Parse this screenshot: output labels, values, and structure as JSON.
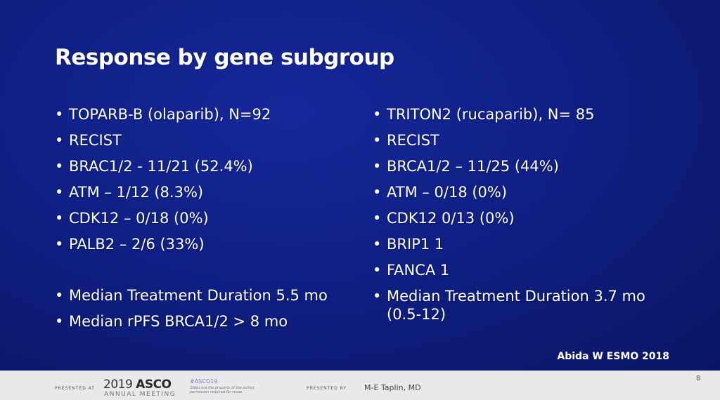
{
  "slide": {
    "title": "Response by gene subgroup",
    "left_column": [
      "TOPARB-B (olaparib), N=92",
      "RECIST",
      "BRAC1/2 -  11/21 (52.4%)",
      "ATM – 1/12 (8.3%)",
      "CDK12 – 0/18 (0%)",
      "PALB2 – 2/6 (33%)",
      "Median Treatment Duration 5.5 mo",
      "Median rPFS BRCA1/2 > 8 mo"
    ],
    "right_column": [
      "TRITON2 (rucaparib), N= 85",
      "RECIST",
      "BRCA1/2 – 11/25 (44%)",
      "ATM – 0/18 (0%)",
      "CDK12 0/13 (0%)",
      "BRIP1 1",
      "FANCA 1",
      "Median Treatment Duration 3.7 mo (0.5-12)"
    ],
    "citation": "Abida W ESMO 2018",
    "background_color": "#0f1f84",
    "text_color": "#ffffff"
  },
  "footer": {
    "presented_at_label": "PRESENTED AT",
    "meeting_year": "2019",
    "meeting_org": "ASCO",
    "meeting_subtitle": "ANNUAL MEETING",
    "hashtag": "#ASCO19",
    "disclaimer": "Slides are the property of the author, permission required for reuse.",
    "presented_by_label": "PRESENTED BY",
    "presenter": "M-E Taplin, MD",
    "page_number": "8"
  }
}
